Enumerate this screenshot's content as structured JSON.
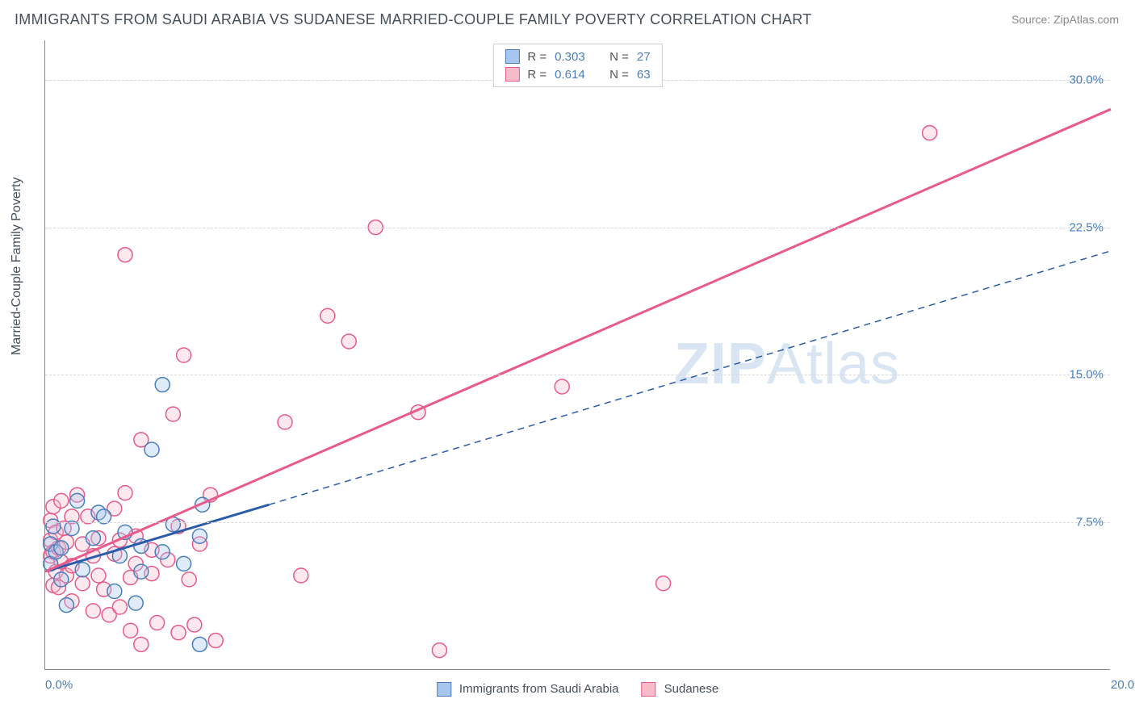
{
  "title": "IMMIGRANTS FROM SAUDI ARABIA VS SUDANESE MARRIED-COUPLE FAMILY POVERTY CORRELATION CHART",
  "source": "Source: ZipAtlas.com",
  "ylabel": "Married-Couple Family Poverty",
  "watermark_bold": "ZIP",
  "watermark_rest": "Atlas",
  "chart": {
    "type": "scatter-correlation",
    "background_color": "#ffffff",
    "grid_color": "#d8d8d8",
    "axis_color": "#888888",
    "text_color": "#444f5a",
    "tick_label_color": "#4a7ebb",
    "xlim": [
      0,
      20
    ],
    "ylim": [
      0,
      32
    ],
    "x_ticks": [
      {
        "value": 0,
        "label": "0.0%"
      },
      {
        "value": 20,
        "label": "20.0%"
      }
    ],
    "y_ticks": [
      {
        "value": 7.5,
        "label": "7.5%"
      },
      {
        "value": 15.0,
        "label": "15.0%"
      },
      {
        "value": 22.5,
        "label": "22.5%"
      },
      {
        "value": 30.0,
        "label": "30.0%"
      }
    ],
    "marker_radius": 9,
    "marker_stroke_width": 1.5,
    "marker_fill_opacity": 0.35,
    "series": [
      {
        "id": "saudi",
        "label": "Immigrants from Saudi Arabia",
        "fill": "#a7c6ed",
        "stroke": "#4a7ebb",
        "R": "0.303",
        "N": "27",
        "trend": {
          "x1": 0,
          "y1": 5.0,
          "x2": 4.2,
          "y2": 8.4,
          "ext_x2": 20,
          "ext_y2": 21.3,
          "stroke": "#2a5caa",
          "solid_width": 3,
          "dash_width": 1.5,
          "dash": "8 6"
        },
        "points": [
          [
            0.1,
            6.4
          ],
          [
            0.1,
            5.4
          ],
          [
            0.15,
            7.3
          ],
          [
            0.2,
            6.0
          ],
          [
            0.3,
            4.6
          ],
          [
            0.3,
            6.2
          ],
          [
            0.5,
            7.2
          ],
          [
            0.6,
            8.6
          ],
          [
            0.7,
            5.1
          ],
          [
            0.9,
            6.7
          ],
          [
            1.0,
            8.0
          ],
          [
            1.1,
            7.8
          ],
          [
            1.3,
            4.0
          ],
          [
            1.4,
            5.8
          ],
          [
            1.7,
            3.4
          ],
          [
            1.8,
            6.3
          ],
          [
            1.8,
            5.0
          ],
          [
            2.0,
            11.2
          ],
          [
            2.2,
            14.5
          ],
          [
            2.2,
            6.0
          ],
          [
            2.4,
            7.4
          ],
          [
            2.6,
            5.4
          ],
          [
            2.9,
            6.8
          ],
          [
            2.9,
            1.3
          ],
          [
            2.95,
            8.4
          ],
          [
            0.4,
            3.3
          ],
          [
            1.5,
            7.0
          ]
        ]
      },
      {
        "id": "sudanese",
        "label": "Sudanese",
        "fill": "#f7bcca",
        "stroke": "#e85a8a",
        "R": "0.614",
        "N": "63",
        "trend": {
          "x1": 0,
          "y1": 5.0,
          "x2": 20,
          "y2": 28.5,
          "stroke": "#e85a8a",
          "solid_width": 3
        },
        "points": [
          [
            0.1,
            5.8
          ],
          [
            0.1,
            6.6
          ],
          [
            0.1,
            7.6
          ],
          [
            0.15,
            4.3
          ],
          [
            0.15,
            6.0
          ],
          [
            0.15,
            8.3
          ],
          [
            0.2,
            5.0
          ],
          [
            0.2,
            7.0
          ],
          [
            0.25,
            4.2
          ],
          [
            0.25,
            6.2
          ],
          [
            0.3,
            8.6
          ],
          [
            0.3,
            5.5
          ],
          [
            0.35,
            7.2
          ],
          [
            0.4,
            4.8
          ],
          [
            0.4,
            6.5
          ],
          [
            0.5,
            7.8
          ],
          [
            0.5,
            3.5
          ],
          [
            0.5,
            5.3
          ],
          [
            0.6,
            8.9
          ],
          [
            0.7,
            4.4
          ],
          [
            0.7,
            6.4
          ],
          [
            0.8,
            7.8
          ],
          [
            0.9,
            5.8
          ],
          [
            0.9,
            3.0
          ],
          [
            1.0,
            6.7
          ],
          [
            1.0,
            4.8
          ],
          [
            1.1,
            4.1
          ],
          [
            1.2,
            2.8
          ],
          [
            1.3,
            5.9
          ],
          [
            1.3,
            8.2
          ],
          [
            1.4,
            3.2
          ],
          [
            1.4,
            6.6
          ],
          [
            1.5,
            9.0
          ],
          [
            1.5,
            21.1
          ],
          [
            1.6,
            4.7
          ],
          [
            1.6,
            2.0
          ],
          [
            1.7,
            5.4
          ],
          [
            1.7,
            6.8
          ],
          [
            1.8,
            1.3
          ],
          [
            1.8,
            11.7
          ],
          [
            2.0,
            4.9
          ],
          [
            2.0,
            6.1
          ],
          [
            2.1,
            2.4
          ],
          [
            2.3,
            5.6
          ],
          [
            2.4,
            13.0
          ],
          [
            2.5,
            7.3
          ],
          [
            2.5,
            1.9
          ],
          [
            2.6,
            16.0
          ],
          [
            2.7,
            4.6
          ],
          [
            2.8,
            2.3
          ],
          [
            2.9,
            6.4
          ],
          [
            3.1,
            8.9
          ],
          [
            3.2,
            1.5
          ],
          [
            4.5,
            12.6
          ],
          [
            4.8,
            4.8
          ],
          [
            5.3,
            18.0
          ],
          [
            5.7,
            16.7
          ],
          [
            6.2,
            22.5
          ],
          [
            7.0,
            13.1
          ],
          [
            7.4,
            1.0
          ],
          [
            9.7,
            14.4
          ],
          [
            11.6,
            4.4
          ],
          [
            16.6,
            27.3
          ]
        ]
      }
    ]
  },
  "legend_top": {
    "r_label": "R =",
    "n_label": "N ="
  }
}
